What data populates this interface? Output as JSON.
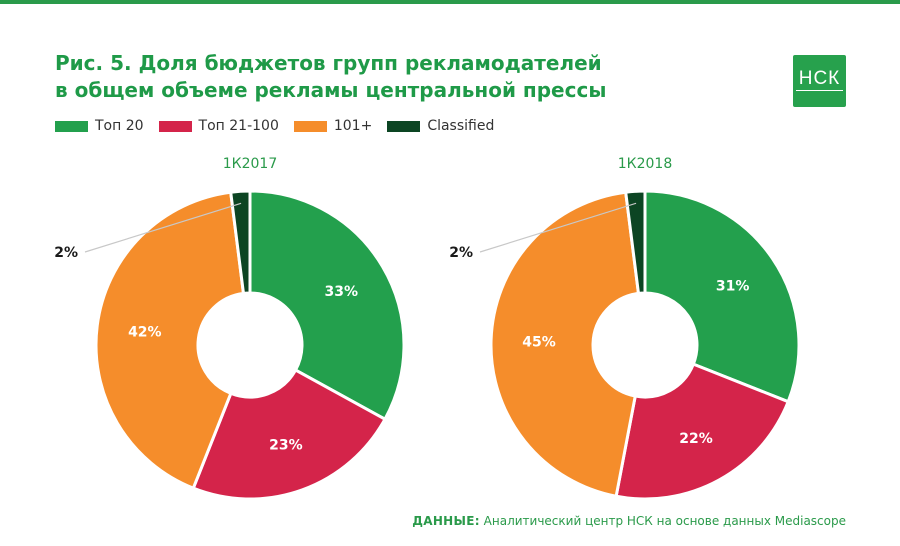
{
  "title": {
    "line1": "Рис. 5. Доля бюджетов групп рекламодателей",
    "line2": "в общем объеме рекламы центральной прессы"
  },
  "logo": {
    "text": "НСК"
  },
  "legend": [
    {
      "label": "Топ 20",
      "color": "#23a04d"
    },
    {
      "label": "Топ 21-100",
      "color": "#d4244a"
    },
    {
      "label": "101+",
      "color": "#f58d2b"
    },
    {
      "label": "Classified",
      "color": "#0c4523"
    }
  ],
  "footer": {
    "label": "ДАННЫЕ:",
    "text": "Аналитический центр НСК на основе данных Mediascope"
  },
  "chart_data": [
    {
      "type": "pie",
      "title": "1К2017",
      "categories": [
        "Топ 20",
        "Топ 21-100",
        "101+",
        "Classified"
      ],
      "values": [
        33,
        23,
        42,
        2
      ],
      "labels": [
        "33%",
        "23%",
        "42%",
        "2%"
      ]
    },
    {
      "type": "pie",
      "title": "1К2018",
      "categories": [
        "Топ 20",
        "Топ 21-100",
        "101+",
        "Classified"
      ],
      "values": [
        31,
        22,
        45,
        2
      ],
      "labels": [
        "31%",
        "22%",
        "45%",
        "2%"
      ]
    }
  ]
}
